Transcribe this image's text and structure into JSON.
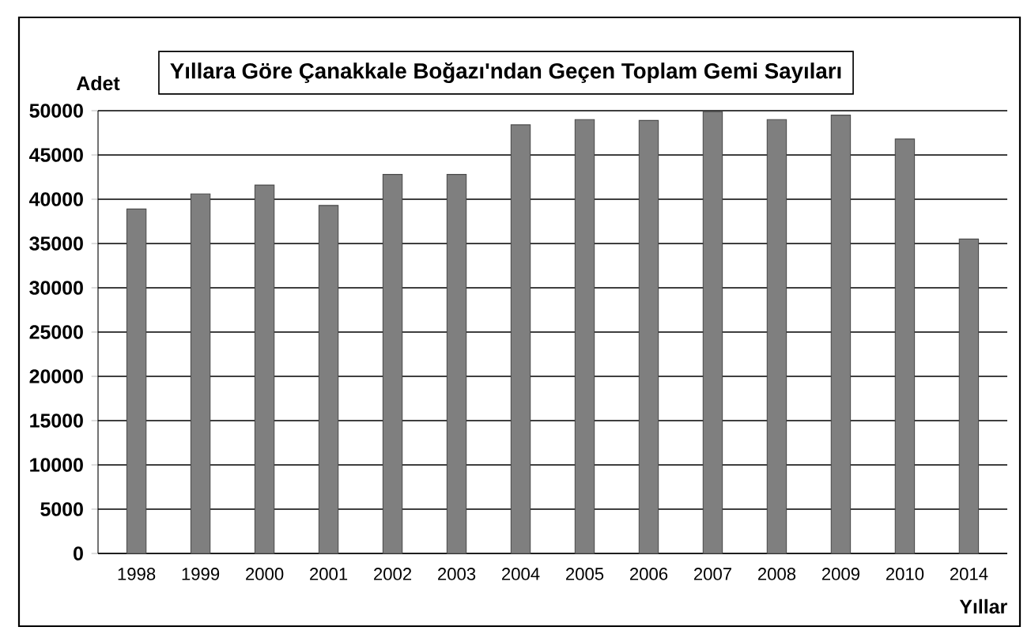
{
  "chart_data": {
    "type": "bar",
    "title": "Yıllara Göre Çanakkale Boğazı'ndan Geçen Toplam Gemi Sayıları",
    "xlabel": "Yıllar",
    "ylabel": "Adet",
    "categories": [
      "1998",
      "1999",
      "2000",
      "2001",
      "2002",
      "2003",
      "2004",
      "2005",
      "2006",
      "2007",
      "2008",
      "2009",
      "2010",
      "2014"
    ],
    "values": [
      38900,
      40600,
      41600,
      39300,
      42800,
      42800,
      48400,
      49000,
      48900,
      49900,
      49000,
      49500,
      46800,
      35500
    ],
    "color": "#7f7f7f",
    "ylim": [
      0,
      50000
    ],
    "yticks": [
      0,
      5000,
      10000,
      15000,
      20000,
      25000,
      30000,
      35000,
      40000,
      45000,
      50000
    ],
    "grid": "y"
  }
}
